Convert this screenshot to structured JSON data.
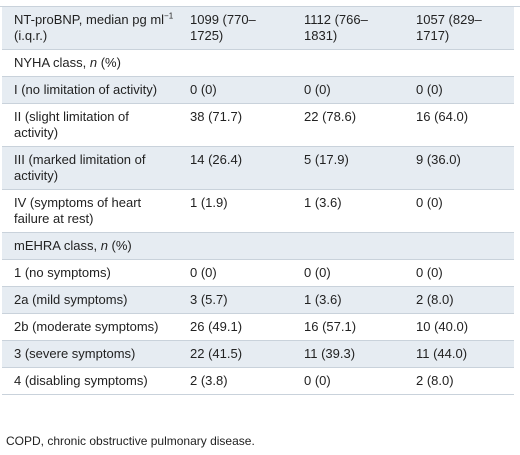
{
  "table": {
    "rows": [
      {
        "label": "NT-proBNP, median pg ml",
        "label_sup": "−1",
        "label_after": " (i.q.r.)",
        "cells": [
          "1099 (770–1725)",
          "1112 (766–1831)",
          "1057 (829–1717)"
        ]
      },
      {
        "label": "NYHA class, ",
        "label_italic": "n",
        "label_after": " (%)",
        "cells": []
      },
      {
        "label": "I (no limitation of activity)",
        "cells": [
          "0 (0)",
          "0 (0)",
          "0 (0)"
        ]
      },
      {
        "label": "II (slight limitation of activity)",
        "cells": [
          "38 (71.7)",
          "22 (78.6)",
          "16 (64.0)"
        ]
      },
      {
        "label": "III (marked limitation of activity)",
        "cells": [
          "14 (26.4)",
          "5 (17.9)",
          "9 (36.0)"
        ]
      },
      {
        "label": "IV (symptoms of heart failure at rest)",
        "cells": [
          "1 (1.9)",
          "1 (3.6)",
          "0 (0)"
        ]
      },
      {
        "label": "mEHRA class, ",
        "label_italic": "n",
        "label_after": " (%)",
        "cells": []
      },
      {
        "label": "1 (no symptoms)",
        "cells": [
          "0 (0)",
          "0 (0)",
          "0 (0)"
        ]
      },
      {
        "label": "2a (mild symptoms)",
        "cells": [
          "3 (5.7)",
          "1 (3.6)",
          "2 (8.0)"
        ]
      },
      {
        "label": "2b (moderate symptoms)",
        "cells": [
          "26 (49.1)",
          "16 (57.1)",
          "10 (40.0)"
        ]
      },
      {
        "label": "3 (severe symptoms)",
        "cells": [
          "22 (41.5)",
          "11 (39.3)",
          "11 (44.0)"
        ]
      },
      {
        "label": "4 (disabling symptoms)",
        "cells": [
          "2 (3.8)",
          "0 (0)",
          "2 (8.0)"
        ]
      }
    ]
  },
  "footnote": "COPD, chronic obstructive pulmonary disease."
}
